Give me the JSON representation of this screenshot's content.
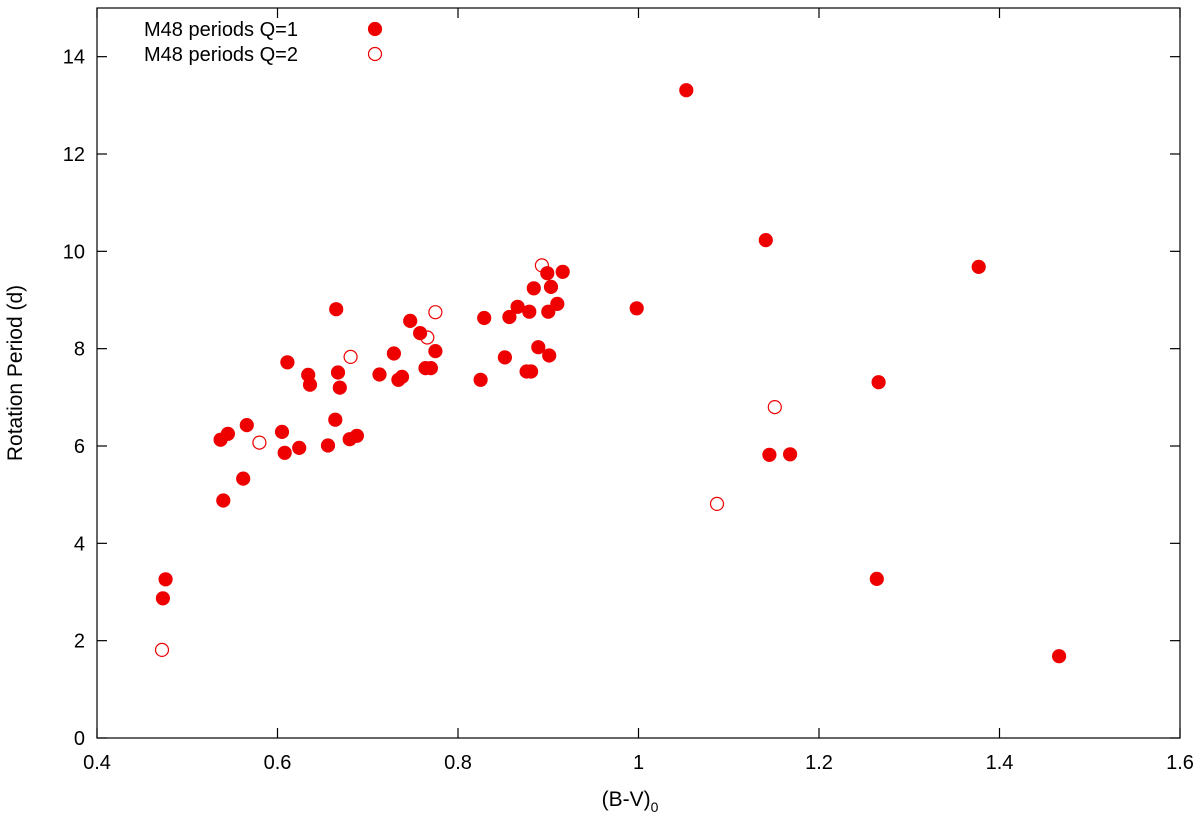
{
  "chart_data": {
    "type": "scatter",
    "xlabel_main": "(B-V)",
    "xlabel_sub": "0",
    "ylabel": "Rotation Period (d)",
    "xlim": [
      0.4,
      1.6
    ],
    "ylim": [
      0,
      15
    ],
    "x_ticks": [
      {
        "value": 0.4,
        "label": "0.4"
      },
      {
        "value": 0.6,
        "label": "0.6"
      },
      {
        "value": 0.8,
        "label": "0.8"
      },
      {
        "value": 1.0,
        "label": "1"
      },
      {
        "value": 1.2,
        "label": "1.2"
      },
      {
        "value": 1.4,
        "label": "1.4"
      },
      {
        "value": 1.6,
        "label": "1.6"
      }
    ],
    "y_ticks": [
      {
        "value": 0,
        "label": "0"
      },
      {
        "value": 2,
        "label": "2"
      },
      {
        "value": 4,
        "label": "4"
      },
      {
        "value": 6,
        "label": "6"
      },
      {
        "value": 8,
        "label": "8"
      },
      {
        "value": 10,
        "label": "10"
      },
      {
        "value": 12,
        "label": "12"
      },
      {
        "value": 14,
        "label": "14"
      }
    ],
    "grid": false,
    "legend_position": "top-left",
    "color": "#ee0000",
    "series": [
      {
        "name": "M48 periods Q=1",
        "marker": "filled-circle",
        "points": [
          [
            0.476,
            3.26
          ],
          [
            0.473,
            2.87
          ],
          [
            0.54,
            4.88
          ],
          [
            0.537,
            6.13
          ],
          [
            0.545,
            6.25
          ],
          [
            0.562,
            5.33
          ],
          [
            0.566,
            6.43
          ],
          [
            0.605,
            6.29
          ],
          [
            0.608,
            5.86
          ],
          [
            0.611,
            7.72
          ],
          [
            0.624,
            5.96
          ],
          [
            0.634,
            7.46
          ],
          [
            0.636,
            7.26
          ],
          [
            0.656,
            6.01
          ],
          [
            0.664,
            6.54
          ],
          [
            0.665,
            8.81
          ],
          [
            0.667,
            7.51
          ],
          [
            0.669,
            7.2
          ],
          [
            0.68,
            6.14
          ],
          [
            0.688,
            6.21
          ],
          [
            0.713,
            7.47
          ],
          [
            0.729,
            7.9
          ],
          [
            0.734,
            7.36
          ],
          [
            0.738,
            7.42
          ],
          [
            0.747,
            8.57
          ],
          [
            0.758,
            8.32
          ],
          [
            0.764,
            7.6
          ],
          [
            0.77,
            7.6
          ],
          [
            0.775,
            7.95
          ],
          [
            0.825,
            7.36
          ],
          [
            0.829,
            8.63
          ],
          [
            0.852,
            7.82
          ],
          [
            0.857,
            8.65
          ],
          [
            0.866,
            8.86
          ],
          [
            0.876,
            7.53
          ],
          [
            0.879,
            8.76
          ],
          [
            0.881,
            7.53
          ],
          [
            0.884,
            9.24
          ],
          [
            0.889,
            8.03
          ],
          [
            0.899,
            9.55
          ],
          [
            0.9,
            8.76
          ],
          [
            0.901,
            7.86
          ],
          [
            0.903,
            9.27
          ],
          [
            0.91,
            8.92
          ],
          [
            0.916,
            9.58
          ],
          [
            0.998,
            8.83
          ],
          [
            1.053,
            13.31
          ],
          [
            1.141,
            10.23
          ],
          [
            1.145,
            5.82
          ],
          [
            1.168,
            5.83
          ],
          [
            1.264,
            3.27
          ],
          [
            1.266,
            7.31
          ],
          [
            1.377,
            9.68
          ],
          [
            1.466,
            1.68
          ]
        ]
      },
      {
        "name": "M48 periods Q=2",
        "marker": "open-circle",
        "points": [
          [
            0.472,
            1.81
          ],
          [
            0.58,
            6.07
          ],
          [
            0.681,
            7.83
          ],
          [
            0.766,
            8.23
          ],
          [
            0.775,
            8.75
          ],
          [
            0.893,
            9.71
          ],
          [
            1.087,
            4.81
          ],
          [
            1.151,
            6.8
          ]
        ]
      }
    ]
  }
}
